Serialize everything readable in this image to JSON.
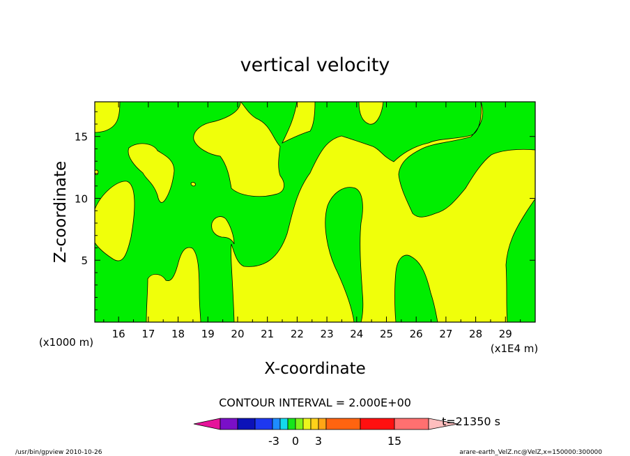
{
  "chart_data": {
    "type": "heatmap",
    "title": "vertical velocity",
    "xlabel": "X-coordinate",
    "ylabel": "Z-coordinate",
    "x_unit": "(x1E4 m)",
    "y_unit": "(x1000 m)",
    "xlim": [
      15.2,
      30.0
    ],
    "ylim": [
      0.0,
      17.8
    ],
    "x_ticks": [
      "16",
      "17",
      "18",
      "19",
      "20",
      "21",
      "22",
      "23",
      "24",
      "25",
      "26",
      "27",
      "28",
      "29"
    ],
    "y_ticks": [
      "5",
      "10",
      "15"
    ],
    "contour_interval": "CONTOUR INTERVAL = 2.000E+00",
    "time_label": "t=21350 s",
    "colorbar": {
      "tick_labels": [
        "-3",
        "0",
        "3",
        "15"
      ],
      "colors": [
        "#e6139a",
        "#7a0fc8",
        "#0c12b8",
        "#1e38f0",
        "#1e8cff",
        "#14d9ee",
        "#16e61a",
        "#82f21a",
        "#ecf41c",
        "#ffd21a",
        "#ffa516",
        "#ff6410",
        "#ff1010",
        "#ff7070",
        "#ffbebe"
      ]
    },
    "field_colors": {
      "positive": "#f0ff0a",
      "negative": "#00ee00"
    },
    "footer_left": "/usr/bin/gpview   2010-10-26",
    "footer_right": "arare-earth_VelZ.nc@VelZ,x=150000:300000"
  }
}
